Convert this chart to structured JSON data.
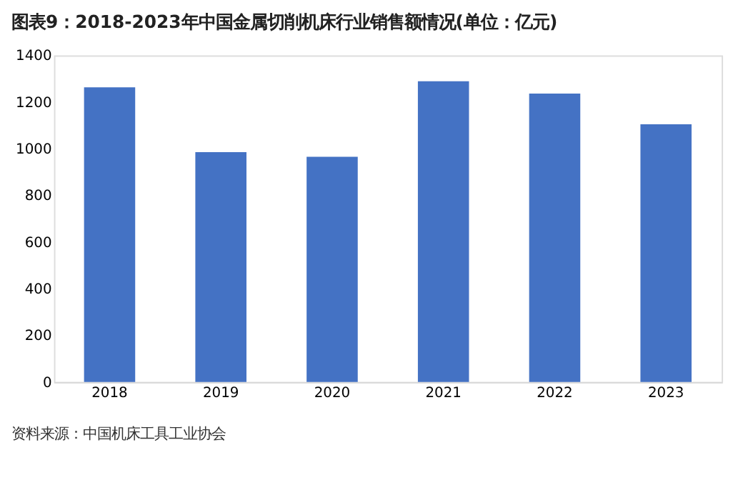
{
  "chart_data": {
    "type": "bar",
    "title": "图表9：2018-2023年中国金属切削机床行业销售额情况(单位：亿元)",
    "categories": [
      "2018",
      "2019",
      "2020",
      "2021",
      "2022",
      "2023"
    ],
    "values": [
      1263,
      985,
      965,
      1289,
      1236,
      1104
    ],
    "color": "#4472c4",
    "ylim": [
      0,
      1400
    ],
    "yticks": [
      0,
      200,
      400,
      600,
      800,
      1000,
      1200,
      1400
    ],
    "grid": false,
    "annotations": [
      "资料来源：中国机床工具工业协会"
    ]
  }
}
